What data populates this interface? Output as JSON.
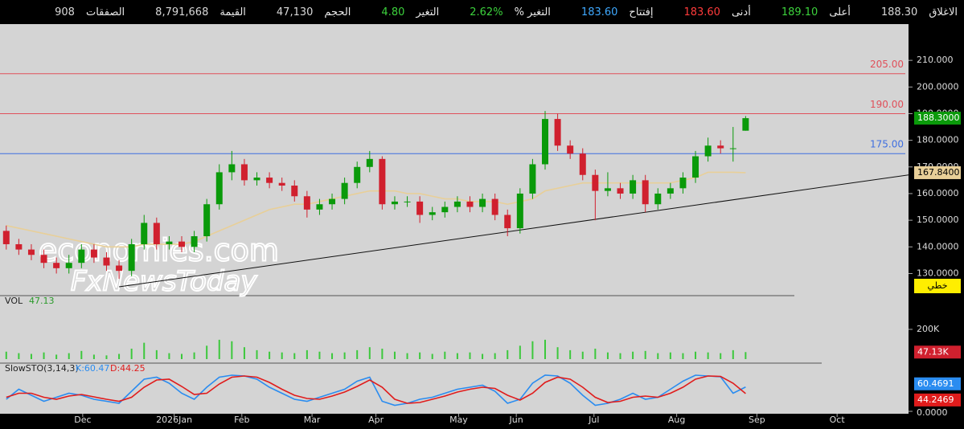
{
  "header": {
    "items": [
      {
        "label": "الاغلاق",
        "value": "188.30",
        "color": "#d8d8d8"
      },
      {
        "label": "أعلى",
        "value": "189.10",
        "color": "#3cd23c"
      },
      {
        "label": "أدنى",
        "value": "183.60",
        "color": "#ff3b3b"
      },
      {
        "label": "إفتتاح",
        "value": "183.60",
        "color": "#3fa9ff"
      },
      {
        "label": "التغير %",
        "value": "2.62%",
        "color": "#3cd23c"
      },
      {
        "label": "التغير",
        "value": "4.80",
        "color": "#3cd23c"
      },
      {
        "label": "الحجم",
        "value": "47,130",
        "color": "#d8d8d8"
      },
      {
        "label": "القيمة",
        "value": "8,791,668",
        "color": "#d8d8d8"
      },
      {
        "label": "الصفقات",
        "value": "908",
        "color": "#d8d8d8"
      }
    ]
  },
  "chart_data": {
    "type": "candlestick",
    "categories": [
      null,
      null,
      null,
      null,
      null,
      null,
      null,
      null,
      null,
      null,
      null,
      null,
      null,
      null,
      null,
      null,
      null,
      null,
      null,
      null,
      null,
      null,
      null,
      null,
      null,
      null,
      null,
      null,
      null,
      null,
      null,
      null,
      null,
      null,
      null,
      null,
      null,
      null,
      null,
      null,
      null,
      null,
      null,
      null,
      null,
      null,
      null,
      null,
      null,
      null,
      null,
      null,
      null,
      null,
      null,
      null,
      null,
      null,
      null,
      null
    ],
    "xlim": [
      -0.5,
      72
    ],
    "xticks": [
      {
        "value": 6.1,
        "label": "Dec"
      },
      {
        "value": 13.4,
        "label": "2026Jan"
      },
      {
        "value": 18.8,
        "label": "Feb"
      },
      {
        "value": 24.4,
        "label": "Mar"
      },
      {
        "value": 29.5,
        "label": "Apr"
      },
      {
        "value": 36.1,
        "label": "May"
      },
      {
        "value": 40.7,
        "label": "Jun"
      },
      {
        "value": 46.9,
        "label": "Jul"
      },
      {
        "value": 53.5,
        "label": "Aug"
      },
      {
        "value": 59.9,
        "label": "Sep"
      },
      {
        "value": 66.3,
        "label": "Oct"
      }
    ],
    "ylim": [
      122,
      223
    ],
    "yticks": [
      {
        "value": 130,
        "label": "130.0000"
      },
      {
        "value": 140,
        "label": "140.0000"
      },
      {
        "value": 150,
        "label": "150.0000"
      },
      {
        "value": 160,
        "label": "160.0000"
      },
      {
        "value": 170,
        "label": "170.0000"
      },
      {
        "value": 180,
        "label": "180.0000"
      },
      {
        "value": 190,
        "label": "190.0000"
      },
      {
        "value": 200,
        "label": "200.0000"
      },
      {
        "value": 210,
        "label": "210.000"
      }
    ],
    "up_color": "#0a9a0a",
    "down_color": "#d0202e",
    "open": [
      146,
      141,
      139,
      137,
      134,
      132,
      134,
      139,
      136,
      133,
      131,
      141,
      149,
      141,
      142,
      140,
      144,
      156,
      168,
      171,
      165,
      166,
      164,
      163,
      159,
      154,
      156,
      158,
      164,
      170,
      173,
      156,
      157,
      157,
      152,
      153,
      155,
      157,
      155,
      158,
      152,
      147,
      160,
      171,
      188,
      178,
      175,
      167,
      161,
      162,
      160,
      165,
      156,
      160,
      162,
      166,
      174,
      178,
      177,
      183.6
    ],
    "high": [
      148,
      143,
      141,
      139,
      136,
      137,
      141,
      141,
      138,
      135,
      143,
      152,
      151,
      144,
      144,
      146,
      158,
      171,
      176,
      173,
      168,
      168,
      166,
      165,
      161,
      158,
      160,
      166,
      172,
      176,
      174,
      159,
      159,
      159,
      155,
      157,
      159,
      159,
      160,
      160,
      154,
      162,
      173,
      191,
      190,
      180,
      177,
      169,
      168,
      164,
      167,
      167,
      162,
      164,
      168,
      176,
      181,
      180,
      185,
      189.1
    ],
    "low": [
      139,
      137,
      135,
      132,
      130,
      130,
      132,
      134,
      131,
      128,
      129,
      139,
      139,
      139,
      138,
      138,
      142,
      154,
      165,
      163,
      163,
      162,
      161,
      157,
      151,
      152,
      154,
      156,
      162,
      168,
      154,
      154,
      155,
      149,
      150,
      151,
      153,
      153,
      153,
      150,
      144,
      145,
      158,
      169,
      176,
      173,
      165,
      150,
      159,
      158,
      158,
      153,
      154,
      158,
      160,
      164,
      172,
      175,
      172,
      183.6
    ],
    "close": [
      141,
      139,
      137,
      134,
      132,
      134,
      139,
      136,
      133,
      131,
      141,
      149,
      141,
      142,
      140,
      144,
      156,
      168,
      171,
      165,
      166,
      164,
      163,
      159,
      154,
      156,
      158,
      164,
      170,
      173,
      156,
      157,
      157,
      152,
      153,
      155,
      157,
      155,
      158,
      152,
      147,
      160,
      171,
      188,
      178,
      175,
      167,
      161,
      162,
      160,
      165,
      156,
      160,
      162,
      166,
      174,
      178,
      177,
      177,
      188.3
    ],
    "last_label": "188.3000",
    "ma": {
      "color": "#e8cf98",
      "values": [
        148,
        147,
        146,
        145,
        144,
        143,
        142,
        141,
        140,
        140,
        140,
        141,
        141,
        141,
        141,
        142,
        144,
        146,
        148,
        150,
        152,
        154,
        155,
        156,
        156,
        157,
        158,
        159,
        160,
        161,
        161,
        161,
        160,
        160,
        159,
        158,
        158,
        157,
        157,
        157,
        156,
        157,
        158,
        161,
        162,
        163,
        164,
        164,
        164,
        164,
        164,
        164,
        164,
        164,
        165,
        166,
        168,
        168,
        168,
        167.84
      ],
      "last_label": "167.8400"
    },
    "hlines": [
      {
        "value": 205,
        "label": "205.00",
        "color": "#e0505a"
      },
      {
        "value": 190,
        "label": "190.00",
        "color": "#e0505a"
      },
      {
        "value": 175,
        "label": "175.00",
        "color": "#3f6fe0"
      }
    ],
    "trendline": {
      "x": [
        9,
        72
      ],
      "y": [
        125,
        167
      ],
      "color": "#111111"
    },
    "button": "خطي",
    "watermark": [
      "economies.com",
      "FxNewsToday"
    ],
    "volume": {
      "title": "VOL",
      "value_label": "47.13",
      "color": "#3cc83c",
      "ylim": [
        0,
        405
      ],
      "yticks": [
        {
          "value": 200,
          "label": "200K"
        }
      ],
      "values": [
        50,
        40,
        35,
        45,
        30,
        40,
        55,
        30,
        25,
        35,
        70,
        110,
        60,
        40,
        35,
        45,
        90,
        130,
        120,
        80,
        60,
        50,
        45,
        40,
        60,
        50,
        40,
        45,
        60,
        80,
        70,
        50,
        40,
        45,
        35,
        50,
        40,
        45,
        35,
        40,
        60,
        90,
        120,
        130,
        80,
        60,
        50,
        70,
        45,
        40,
        50,
        55,
        40,
        45,
        40,
        50,
        45,
        40,
        60,
        47.13
      ],
      "last_label": "47.13K"
    },
    "stoch": {
      "title": "SlowSTO(3,14,3)",
      "ylim": [
        0,
        100
      ],
      "yticks": [
        {
          "value": 0,
          "label": "0.0000"
        }
      ],
      "k": {
        "label": "K:60.47",
        "color": "#2a8cf0",
        "last_label": "60.4691",
        "values": [
          30,
          55,
          40,
          25,
          35,
          45,
          40,
          30,
          25,
          20,
          50,
          80,
          85,
          70,
          45,
          30,
          60,
          85,
          90,
          88,
          80,
          60,
          45,
          30,
          25,
          35,
          45,
          55,
          75,
          85,
          25,
          15,
          20,
          30,
          35,
          45,
          55,
          60,
          65,
          50,
          20,
          30,
          70,
          90,
          88,
          70,
          40,
          15,
          20,
          30,
          45,
          30,
          35,
          55,
          75,
          90,
          88,
          86,
          45,
          60.47
        ]
      },
      "d": {
        "label": "D:44.25",
        "color": "#e01c1c",
        "last_label": "44.2469",
        "values": [
          35,
          45,
          45,
          35,
          30,
          38,
          42,
          36,
          30,
          25,
          35,
          60,
          78,
          80,
          62,
          42,
          45,
          68,
          85,
          88,
          85,
          72,
          55,
          40,
          32,
          30,
          38,
          48,
          62,
          78,
          60,
          30,
          20,
          22,
          30,
          38,
          48,
          55,
          60,
          57,
          40,
          28,
          45,
          72,
          85,
          80,
          60,
          35,
          22,
          25,
          35,
          38,
          35,
          45,
          60,
          80,
          88,
          87,
          70,
          44.25
        ]
      }
    }
  }
}
